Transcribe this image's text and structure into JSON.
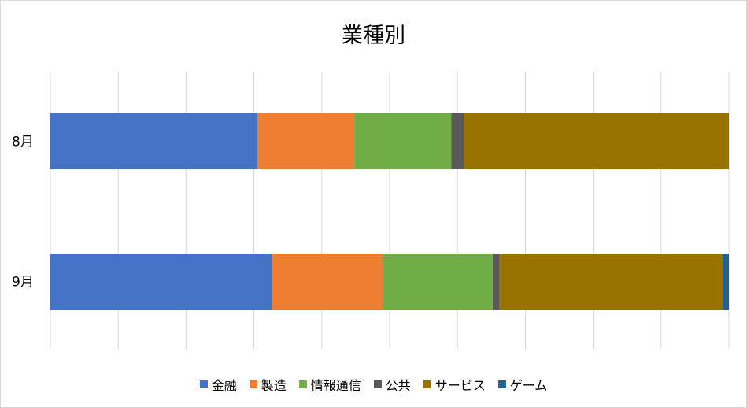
{
  "chart_data": {
    "type": "bar",
    "orientation": "horizontal",
    "stacked": "100%",
    "title": "業種別",
    "categories": [
      "8月",
      "9月"
    ],
    "series": [
      {
        "name": "金融",
        "color": "#4472C4",
        "values": [
          30.5,
          32.6
        ]
      },
      {
        "name": "製造",
        "color": "#ED7D31",
        "values": [
          14.3,
          16.4
        ]
      },
      {
        "name": "情報通信",
        "color": "#70AD47",
        "values": [
          14.3,
          16.2
        ]
      },
      {
        "name": "公共",
        "color": "#595959",
        "values": [
          1.9,
          1.0
        ]
      },
      {
        "name": "サービス",
        "color": "#997300",
        "values": [
          39.0,
          32.8
        ]
      },
      {
        "name": "ゲーム",
        "color": "#255E91",
        "values": [
          0.0,
          1.0
        ]
      }
    ],
    "xlim": [
      0,
      100
    ],
    "grid": true,
    "legend_position": "bottom"
  }
}
